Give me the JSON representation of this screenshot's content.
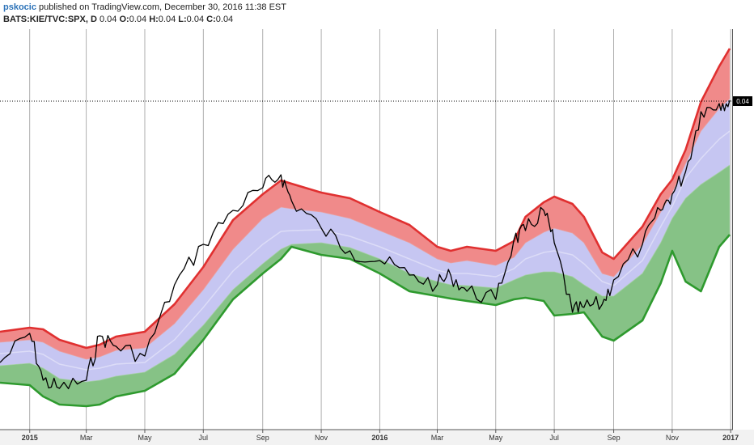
{
  "header": {
    "username": "pskocic",
    "publish_line": "published on TradingView.com, December 30, 2016 11:38 EST",
    "symbol": "BATS:KIE/TVC:SPX, D",
    "value_prefix": "0.04",
    "ohlc": [
      {
        "key": "O:",
        "value": "0.04"
      },
      {
        "key": "H:",
        "value": "0.04"
      },
      {
        "key": "L:",
        "value": "0.04"
      },
      {
        "key": "C:",
        "value": "0.04"
      }
    ]
  },
  "price_tag": "0.04",
  "colors": {
    "upper_band": "#f08a8a",
    "upper_line": "#e03030",
    "middle_band": "#c6c6f2",
    "lower_band": "#86c286",
    "lower_line": "#2e9a2e",
    "price_line": "#000000",
    "grid": "#9a9a9a"
  },
  "chart_data": {
    "type": "area",
    "x_ticks": [
      "2015",
      "Mar",
      "May",
      "Jul",
      "Sep",
      "Nov",
      "2016",
      "Mar",
      "May",
      "Jul",
      "Sep",
      "Nov",
      "2017"
    ],
    "x_domain": [
      "2014-12-01",
      "2016-12-31"
    ],
    "last_value": 0.04,
    "series": [],
    "x": [
      "2014-12-01",
      "2015-01-01",
      "2015-01-15",
      "2015-02-01",
      "2015-03-01",
      "2015-03-15",
      "2015-04-01",
      "2015-05-01",
      "2015-06-01",
      "2015-07-01",
      "2015-08-01",
      "2015-09-01",
      "2015-09-20",
      "2015-10-01",
      "2015-11-01",
      "2015-12-01",
      "2016-01-01",
      "2016-02-01",
      "2016-03-01",
      "2016-03-15",
      "2016-04-01",
      "2016-05-01",
      "2016-05-20",
      "2016-06-01",
      "2016-06-20",
      "2016-07-01",
      "2016-07-20",
      "2016-08-01",
      "2016-08-20",
      "2016-09-01",
      "2016-10-01",
      "2016-10-20",
      "2016-11-01",
      "2016-11-15",
      "2016-12-01",
      "2016-12-20",
      "2016-12-31"
    ],
    "upper_band": [
      410,
      405,
      407,
      420,
      430,
      426,
      416,
      410,
      376,
      330,
      272,
      240,
      223,
      227,
      238,
      245,
      262,
      278,
      305,
      310,
      305,
      310,
      298,
      268,
      250,
      243,
      252,
      268,
      312,
      320,
      280,
      240,
      222,
      185,
      126,
      82,
      60
    ],
    "upper_mid": [
      423,
      420,
      423,
      434,
      444,
      441,
      433,
      430,
      400,
      358,
      308,
      270,
      256,
      258,
      262,
      270,
      285,
      300,
      320,
      325,
      322,
      328,
      318,
      300,
      287,
      282,
      288,
      300,
      338,
      342,
      302,
      262,
      238,
      202,
      162,
      134,
      122
    ],
    "mid_line": [
      437,
      434,
      438,
      450,
      457,
      455,
      450,
      448,
      420,
      380,
      335,
      302,
      286,
      285,
      284,
      292,
      305,
      320,
      334,
      338,
      338,
      342,
      332,
      320,
      312,
      310,
      315,
      326,
      348,
      353,
      322,
      280,
      255,
      220,
      196,
      172,
      162
    ],
    "lower_mid": [
      452,
      449,
      455,
      468,
      472,
      470,
      465,
      460,
      438,
      402,
      358,
      326,
      308,
      302,
      300,
      306,
      320,
      338,
      348,
      352,
      353,
      356,
      346,
      340,
      336,
      336,
      342,
      352,
      366,
      366,
      338,
      300,
      270,
      245,
      228,
      213,
      204
    ],
    "lower_band": [
      473,
      476,
      490,
      500,
      502,
      500,
      490,
      483,
      462,
      420,
      370,
      338,
      320,
      305,
      315,
      320,
      338,
      360,
      366,
      369,
      372,
      377,
      370,
      368,
      372,
      390,
      388,
      386,
      416,
      421,
      396,
      350,
      310,
      348,
      360,
      305,
      290
    ],
    "price": [
      448,
      412,
      470,
      480,
      470,
      415,
      428,
      440,
      352,
      302,
      260,
      232,
      216,
      248,
      282,
      310,
      322,
      340,
      352,
      340,
      360,
      370,
      296,
      285,
      260,
      300,
      386,
      380,
      376,
      346,
      302,
      260,
      240,
      212,
      138,
      128,
      124
    ]
  }
}
